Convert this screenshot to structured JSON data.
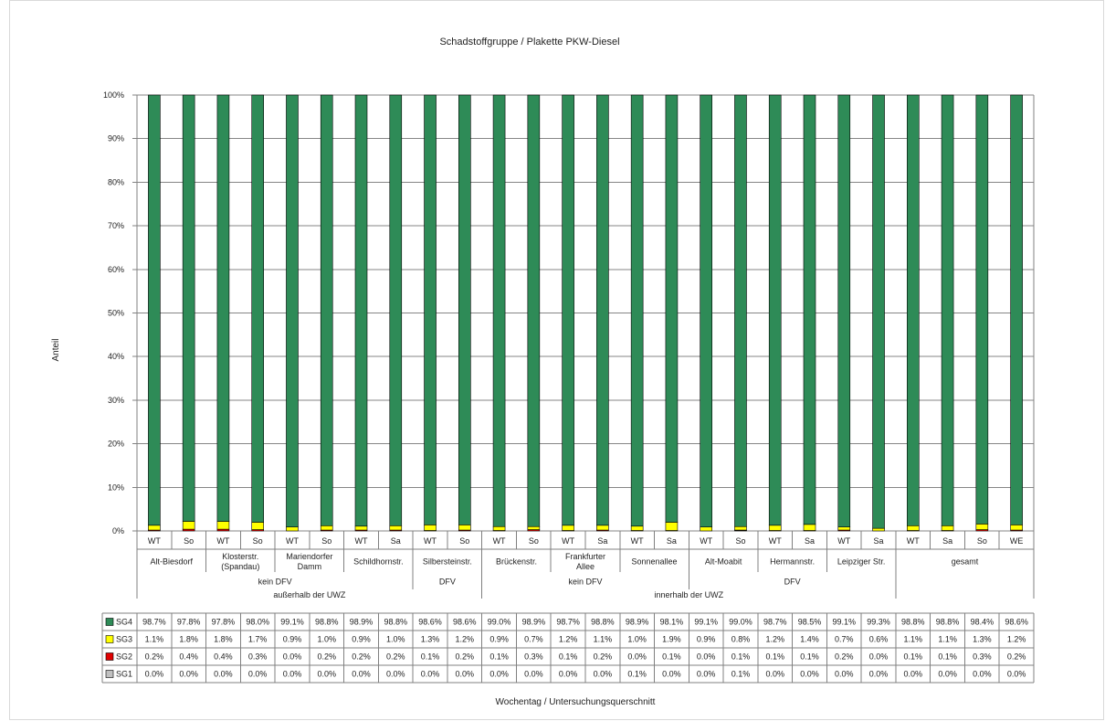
{
  "chart_data": {
    "type": "bar",
    "stacked": true,
    "percent": true,
    "title": "Schadstoffgruppe / Plakette PKW-Diesel",
    "ylabel": "Anteil",
    "xlabel": "Wochentag / Untersuchungsquerschnitt",
    "ylim": [
      0,
      100
    ],
    "yticks": [
      "0%",
      "10%",
      "20%",
      "30%",
      "40%",
      "50%",
      "60%",
      "70%",
      "80%",
      "90%",
      "100%"
    ],
    "grid": true,
    "legend": "table",
    "categories": [
      "WT",
      "So",
      "WT",
      "So",
      "WT",
      "So",
      "WT",
      "Sa",
      "WT",
      "So",
      "WT",
      "So",
      "WT",
      "Sa",
      "WT",
      "Sa",
      "WT",
      "So",
      "WT",
      "Sa",
      "WT",
      "Sa",
      "WT",
      "Sa",
      "So",
      "WE"
    ],
    "locations": [
      {
        "label": "Alt-Biesdorf",
        "span": 2
      },
      {
        "label": "Klosterstr.\n(Spandau)",
        "span": 2
      },
      {
        "label": "Mariendorfer\nDamm",
        "span": 2
      },
      {
        "label": "Schildhornstr.",
        "span": 2
      },
      {
        "label": "Silbersteinstr.",
        "span": 2
      },
      {
        "label": "Brückenstr.",
        "span": 2
      },
      {
        "label": "Frankfurter\nAllee",
        "span": 2
      },
      {
        "label": "Sonnenallee",
        "span": 2
      },
      {
        "label": "Alt-Moabit",
        "span": 2
      },
      {
        "label": "Hermannstr.",
        "span": 2
      },
      {
        "label": "Leipziger Str.",
        "span": 2
      },
      {
        "label": "gesamt",
        "span": 4
      }
    ],
    "groups": [
      {
        "label": "kein DFV",
        "span": 8
      },
      {
        "label": "DFV",
        "span": 2
      },
      {
        "label": "kein DFV",
        "span": 6
      },
      {
        "label": "DFV",
        "span": 6
      },
      {
        "label": "",
        "span": 4
      }
    ],
    "zones": [
      {
        "label": "außerhalb der UWZ",
        "span": 10
      },
      {
        "label": "innerhalb der UWZ",
        "span": 12
      },
      {
        "label": "",
        "span": 4
      }
    ],
    "series": [
      {
        "name": "SG4",
        "color": "#2e8b57",
        "values": [
          98.7,
          97.8,
          97.8,
          98.0,
          99.1,
          98.8,
          98.9,
          98.8,
          98.6,
          98.6,
          99.0,
          98.9,
          98.7,
          98.8,
          98.9,
          98.1,
          99.1,
          99.0,
          98.7,
          98.5,
          99.1,
          99.3,
          98.8,
          98.8,
          98.4,
          98.6
        ]
      },
      {
        "name": "SG3",
        "color": "#ffff00",
        "values": [
          1.1,
          1.8,
          1.8,
          1.7,
          0.9,
          1.0,
          0.9,
          1.0,
          1.3,
          1.2,
          0.9,
          0.7,
          1.2,
          1.1,
          1.0,
          1.9,
          0.9,
          0.8,
          1.2,
          1.4,
          0.7,
          0.6,
          1.1,
          1.1,
          1.3,
          1.2
        ]
      },
      {
        "name": "SG2",
        "color": "#e00000",
        "values": [
          0.2,
          0.4,
          0.4,
          0.3,
          0.0,
          0.2,
          0.2,
          0.2,
          0.1,
          0.2,
          0.1,
          0.3,
          0.1,
          0.2,
          0.0,
          0.1,
          0.0,
          0.1,
          0.1,
          0.1,
          0.2,
          0.0,
          0.1,
          0.1,
          0.3,
          0.2
        ]
      },
      {
        "name": "SG1",
        "color": "#c0c0c0",
        "values": [
          0.0,
          0.0,
          0.0,
          0.0,
          0.0,
          0.0,
          0.0,
          0.0,
          0.0,
          0.0,
          0.0,
          0.0,
          0.0,
          0.0,
          0.1,
          0.0,
          0.0,
          0.1,
          0.0,
          0.0,
          0.0,
          0.0,
          0.0,
          0.0,
          0.0,
          0.0
        ]
      }
    ],
    "table_rows": [
      {
        "name": "SG4",
        "cells": [
          "98.7%",
          "97.8%",
          "97.8%",
          "98.0%",
          "99.1%",
          "98.8%",
          "98.9%",
          "98.8%",
          "98.6%",
          "98.6%",
          "99.0%",
          "98.9%",
          "98.7%",
          "98.8%",
          "98.9%",
          "98.1%",
          "99.1%",
          "99.0%",
          "98.7%",
          "98.5%",
          "99.1%",
          "99.3%",
          "98.8%",
          "98.8%",
          "98.4%",
          "98.6%"
        ]
      },
      {
        "name": "SG3",
        "cells": [
          "1.1%",
          "1.8%",
          "1.8%",
          "1.7%",
          "0.9%",
          "1.0%",
          "0.9%",
          "1.0%",
          "1.3%",
          "1.2%",
          "0.9%",
          "0.7%",
          "1.2%",
          "1.1%",
          "1.0%",
          "1.9%",
          "0.9%",
          "0.8%",
          "1.2%",
          "1.4%",
          "0.7%",
          "0.6%",
          "1.1%",
          "1.1%",
          "1.3%",
          "1.2%"
        ]
      },
      {
        "name": "SG2",
        "cells": [
          "0.2%",
          "0.4%",
          "0.4%",
          "0.3%",
          "0.0%",
          "0.2%",
          "0.2%",
          "0.2%",
          "0.1%",
          "0.2%",
          "0.1%",
          "0.3%",
          "0.1%",
          "0.2%",
          "0.0%",
          "0.1%",
          "0.0%",
          "0.1%",
          "0.1%",
          "0.1%",
          "0.2%",
          "0.0%",
          "0.1%",
          "0.1%",
          "0.3%",
          "0.2%"
        ]
      },
      {
        "name": "SG1",
        "cells": [
          "0.0%",
          "0.0%",
          "0.0%",
          "0.0%",
          "0.0%",
          "0.0%",
          "0.0%",
          "0.0%",
          "0.0%",
          "0.0%",
          "0.0%",
          "0.0%",
          "0.0%",
          "0.0%",
          "0.1%",
          "0.0%",
          "0.0%",
          "0.1%",
          "0.0%",
          "0.0%",
          "0.0%",
          "0.0%",
          "0.0%",
          "0.0%",
          "0.0%",
          "0.0%"
        ]
      }
    ]
  }
}
